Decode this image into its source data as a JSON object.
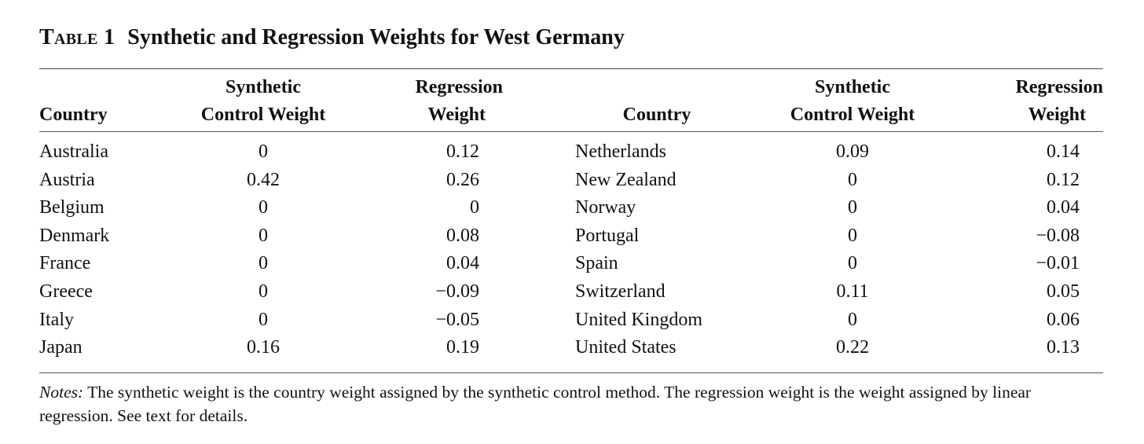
{
  "caption": {
    "label": "Table 1",
    "title": "Synthetic and Regression Weights for West Germany"
  },
  "headers": {
    "country": "Country",
    "synthetic_line1": "Synthetic",
    "synthetic_line2": "Control Weight",
    "regression_line1": "Regression",
    "regression_line2": "Weight"
  },
  "rows": [
    {
      "left": {
        "country": "Australia",
        "synthetic": "0",
        "regression": "0.12"
      },
      "right": {
        "country": "Netherlands",
        "synthetic": "0.09",
        "regression": "0.14"
      }
    },
    {
      "left": {
        "country": "Austria",
        "synthetic": "0.42",
        "regression": "0.26"
      },
      "right": {
        "country": "New Zealand",
        "synthetic": "0",
        "regression": "0.12"
      }
    },
    {
      "left": {
        "country": "Belgium",
        "synthetic": "0",
        "regression": "0"
      },
      "right": {
        "country": "Norway",
        "synthetic": "0",
        "regression": "0.04"
      }
    },
    {
      "left": {
        "country": "Denmark",
        "synthetic": "0",
        "regression": "0.08"
      },
      "right": {
        "country": "Portugal",
        "synthetic": "0",
        "regression": "−0.08"
      }
    },
    {
      "left": {
        "country": "France",
        "synthetic": "0",
        "regression": "0.04"
      },
      "right": {
        "country": "Spain",
        "synthetic": "0",
        "regression": "−0.01"
      }
    },
    {
      "left": {
        "country": "Greece",
        "synthetic": "0",
        "regression": "−0.09"
      },
      "right": {
        "country": "Switzerland",
        "synthetic": "0.11",
        "regression": "0.05"
      }
    },
    {
      "left": {
        "country": "Italy",
        "synthetic": "0",
        "regression": "−0.05"
      },
      "right": {
        "country": "United Kingdom",
        "synthetic": "0",
        "regression": "0.06"
      }
    },
    {
      "left": {
        "country": "Japan",
        "synthetic": "0.16",
        "regression": "0.19"
      },
      "right": {
        "country": "United States",
        "synthetic": "0.22",
        "regression": "0.13"
      }
    }
  ],
  "notes": {
    "label": "Notes:",
    "text": " The synthetic weight is the country weight assigned by the synthetic control method. The regression weight is the weight assigned by linear regression. See text for details."
  }
}
